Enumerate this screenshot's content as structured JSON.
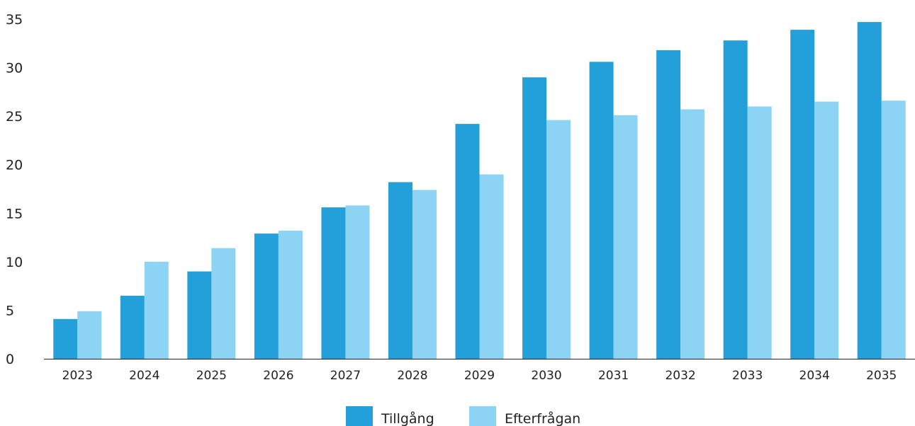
{
  "chart_data": {
    "type": "bar",
    "categories": [
      "2023",
      "2024",
      "2025",
      "2026",
      "2027",
      "2028",
      "2029",
      "2030",
      "2031",
      "2032",
      "2033",
      "2034",
      "2035"
    ],
    "series": [
      {
        "name": "Tillgång",
        "color": "#239fda",
        "values": [
          4.1,
          6.5,
          9.0,
          12.9,
          15.6,
          18.2,
          24.2,
          29.0,
          30.6,
          31.8,
          32.8,
          33.9,
          34.7
        ]
      },
      {
        "name": "Efterfrågan",
        "color": "#8dd3f3",
        "values": [
          4.9,
          10.0,
          11.4,
          13.2,
          15.8,
          17.4,
          19.0,
          24.6,
          25.1,
          25.7,
          26.0,
          26.5,
          26.6
        ]
      }
    ],
    "ylim": [
      0,
      35
    ],
    "yticks": [
      0,
      5,
      10,
      15,
      20,
      25,
      30,
      35
    ],
    "title": "",
    "xlabel": "",
    "ylabel": "",
    "grid": false,
    "legend_position": "bottom-center"
  }
}
